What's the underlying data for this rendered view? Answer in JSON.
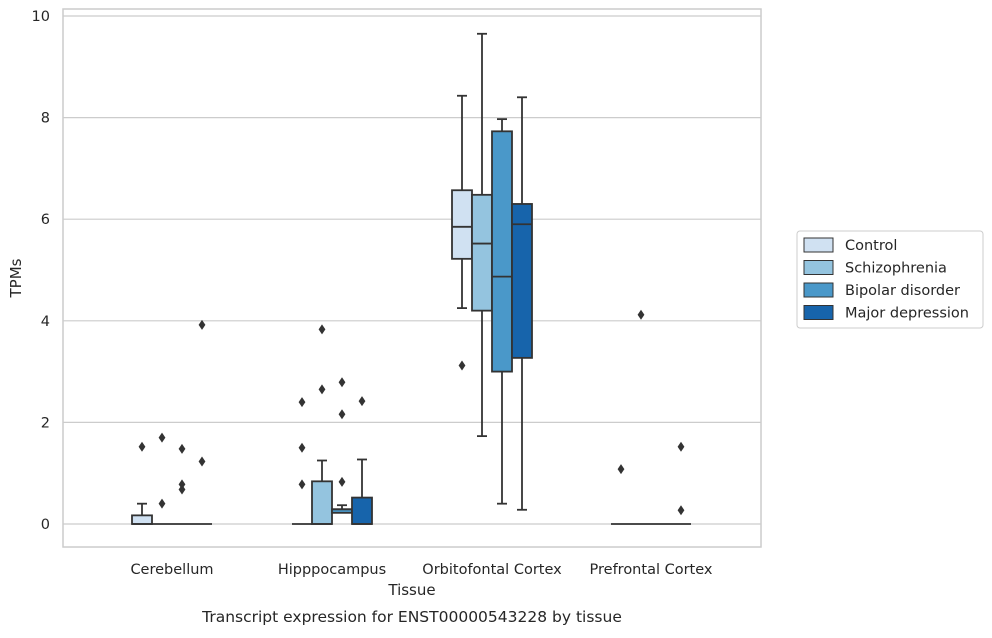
{
  "chart_data": {
    "type": "boxplot",
    "title": "Transcript expression for ENST00000543228 by tissue",
    "xlabel": "Tissue",
    "ylabel": "TPMs",
    "ylim": [
      -0.45,
      10.15
    ],
    "yticks": [
      0,
      2,
      4,
      6,
      8,
      10
    ],
    "grid": "horizontal",
    "legend_position": "right",
    "categories": [
      "Cerebellum",
      "Hipppocampus",
      "Orbitofontal Cortex",
      "Prefrontal Cortex"
    ],
    "series": [
      {
        "name": "Control",
        "color": "#d0e1f2",
        "boxes": [
          {
            "whislo": 0,
            "q1": 0,
            "med": 0,
            "q3": 0.17,
            "whishi": 0.4,
            "fliers": [
              1.52
            ]
          },
          {
            "whislo": 0,
            "q1": 0,
            "med": 0,
            "q3": 0,
            "whishi": 0,
            "fliers": [
              0.78,
              1.5,
              2.4
            ]
          },
          {
            "whislo": 4.25,
            "q1": 5.22,
            "med": 5.85,
            "q3": 6.57,
            "whishi": 8.43,
            "fliers": [
              3.12
            ]
          },
          {
            "whislo": 0,
            "q1": 0,
            "med": 0,
            "q3": 0,
            "whishi": 0,
            "fliers": [
              1.08
            ]
          }
        ]
      },
      {
        "name": "Schizophrenia",
        "color": "#94c4df",
        "boxes": [
          {
            "whislo": 0,
            "q1": 0,
            "med": 0,
            "q3": 0,
            "whishi": 0,
            "fliers": [
              0.4,
              1.7
            ]
          },
          {
            "whislo": 0,
            "q1": 0,
            "med": 0,
            "q3": 0.84,
            "whishi": 1.25,
            "fliers": [
              2.65,
              3.83
            ]
          },
          {
            "whislo": 1.73,
            "q1": 4.2,
            "med": 5.52,
            "q3": 6.48,
            "whishi": 9.65,
            "fliers": []
          },
          {
            "whislo": 0,
            "q1": 0,
            "med": 0,
            "q3": 0,
            "whishi": 0,
            "fliers": [
              4.12
            ]
          }
        ]
      },
      {
        "name": "Bipolar disorder",
        "color": "#4a98c9",
        "boxes": [
          {
            "whislo": 0,
            "q1": 0,
            "med": 0,
            "q3": 0,
            "whishi": 0,
            "fliers": [
              0.68,
              0.78,
              1.48
            ]
          },
          {
            "whislo": 0.22,
            "q1": 0.22,
            "med": 0.29,
            "q3": 0.29,
            "whishi": 0.37,
            "fliers": [
              0.83,
              2.16,
              2.79
            ]
          },
          {
            "whislo": 0.4,
            "q1": 3.0,
            "med": 4.87,
            "q3": 7.73,
            "whishi": 7.97,
            "fliers": []
          },
          {
            "whislo": 0,
            "q1": 0,
            "med": 0,
            "q3": 0,
            "whishi": 0,
            "fliers": []
          }
        ]
      },
      {
        "name": "Major depression",
        "color": "#1764ab",
        "boxes": [
          {
            "whislo": 0,
            "q1": 0,
            "med": 0,
            "q3": 0,
            "whishi": 0,
            "fliers": [
              1.23,
              3.92
            ]
          },
          {
            "whislo": 0,
            "q1": 0,
            "med": 0,
            "q3": 0.52,
            "whishi": 1.27,
            "fliers": [
              2.42
            ]
          },
          {
            "whislo": 0.28,
            "q1": 3.27,
            "med": 5.9,
            "q3": 6.3,
            "whishi": 8.4,
            "fliers": []
          },
          {
            "whislo": 0,
            "q1": 0,
            "med": 0,
            "q3": 0,
            "whishi": 0,
            "fliers": [
              0.27,
              1.52
            ]
          }
        ]
      }
    ]
  }
}
